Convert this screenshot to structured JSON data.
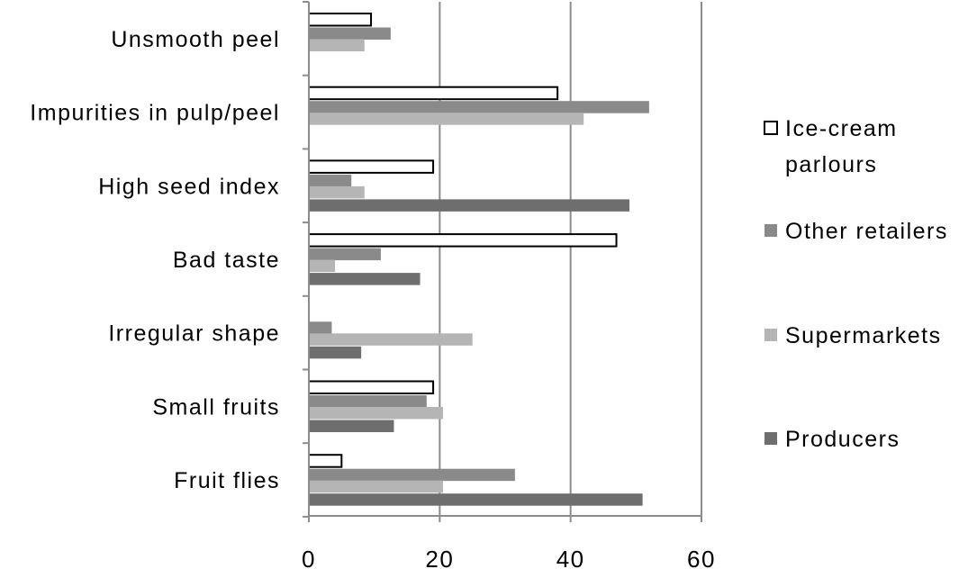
{
  "chart_data": {
    "type": "bar",
    "orientation": "horizontal",
    "categories": [
      "Unsmooth peel",
      "Impurities in pulp/peel",
      "High seed index",
      "Bad taste",
      "Irregular shape",
      "Small fruits",
      "Fruit flies"
    ],
    "series": [
      {
        "name": "Ice-cream parlours",
        "color": "#ffffff",
        "outline": "#000000",
        "values": [
          9.5,
          38,
          19,
          47,
          null,
          19,
          5
        ]
      },
      {
        "name": "Other retailers",
        "color": "#8a8a8a",
        "values": [
          12.5,
          52,
          6.5,
          11,
          3.5,
          18,
          31.5
        ]
      },
      {
        "name": "Supermarkets",
        "color": "#b5b5b5",
        "values": [
          8.5,
          42,
          8.5,
          4,
          25,
          20.5,
          20.5
        ]
      },
      {
        "name": "Producers",
        "color": "#6e6e6e",
        "values": [
          null,
          null,
          49,
          17,
          8,
          13,
          51
        ]
      }
    ],
    "xlim": [
      0,
      60
    ],
    "xticks": [
      0,
      20,
      40,
      60
    ],
    "grid": true,
    "legend_position": "right"
  },
  "legend": {
    "items": [
      {
        "lines": [
          "Ice-cream",
          "parlours"
        ],
        "color": "#ffffff",
        "outline": "#000000"
      },
      {
        "lines": [
          "Other retailers"
        ],
        "color": "#8a8a8a"
      },
      {
        "lines": [
          "Supermarkets"
        ],
        "color": "#b5b5b5"
      },
      {
        "lines": [
          "Producers"
        ],
        "color": "#6e6e6e"
      }
    ]
  }
}
